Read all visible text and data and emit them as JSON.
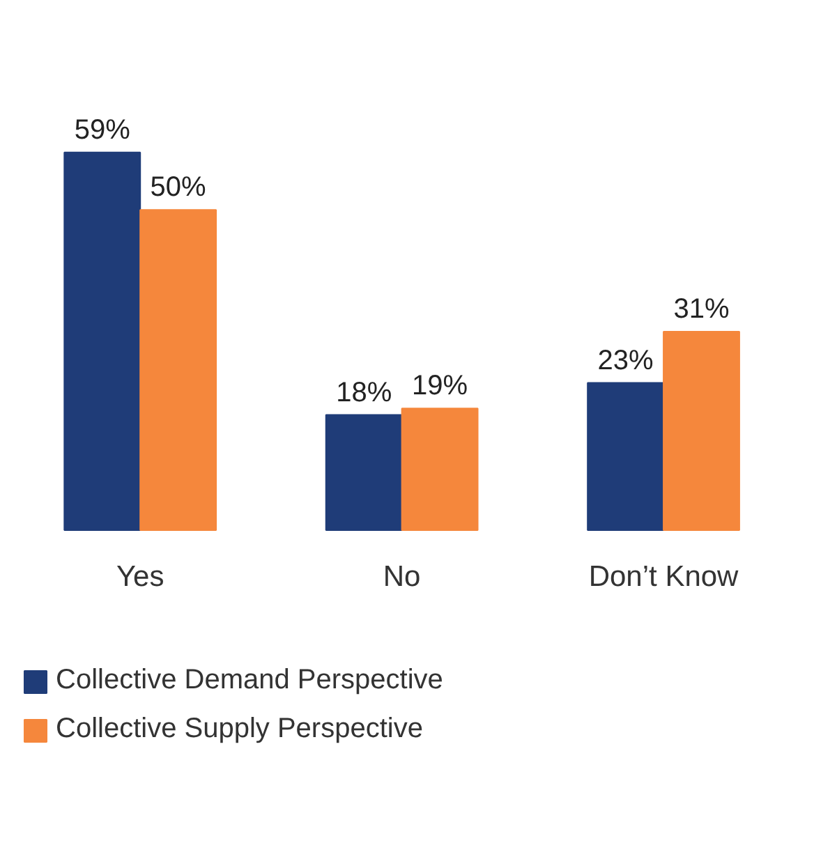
{
  "chart_data": {
    "type": "bar",
    "categories": [
      "Yes",
      "No",
      "Don’t Know"
    ],
    "series": [
      {
        "name": "Collective Demand Perspective",
        "color": "#1f3c78",
        "values": [
          59,
          18,
          23
        ],
        "value_labels": [
          "59%",
          "18%",
          "23%"
        ]
      },
      {
        "name": "Collective Supply Perspective",
        "color": "#f5873c",
        "values": [
          50,
          19,
          31
        ],
        "value_labels": [
          "50%",
          "19%",
          "31%"
        ]
      }
    ],
    "legend": "bottom"
  }
}
